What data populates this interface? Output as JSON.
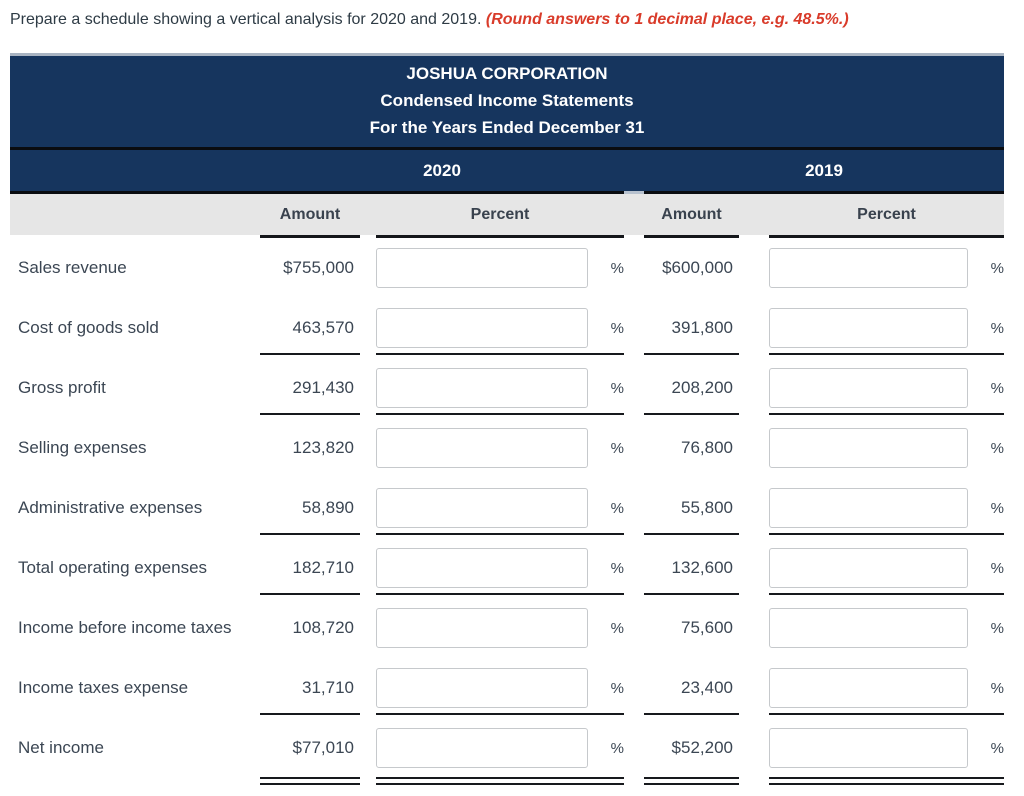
{
  "page": {
    "instruction_main": "Prepare a schedule showing a vertical analysis for 2020 and 2019.",
    "instruction_note": "(Round answers to 1 decimal place, e.g. 48.5%.)"
  },
  "table": {
    "title_line1": "JOSHUA CORPORATION",
    "title_line2": "Condensed Income Statements",
    "title_line3": "For the Years Ended December 31",
    "year_2020_label": "2020",
    "year_2019_label": "2019",
    "amount_header": "Amount",
    "percent_header": "Percent",
    "percent_symbol": "%",
    "rows": [
      {
        "label": "Sales revenue",
        "amount_2020": "$755,000",
        "percent_2020": "",
        "amount_2019": "$600,000",
        "percent_2019": "",
        "underline_after": "none"
      },
      {
        "label": "Cost of goods sold",
        "amount_2020": "463,570",
        "percent_2020": "",
        "amount_2019": "391,800",
        "percent_2019": "",
        "underline_after": "single"
      },
      {
        "label": "Gross profit",
        "amount_2020": "291,430",
        "percent_2020": "",
        "amount_2019": "208,200",
        "percent_2019": "",
        "underline_after": "single"
      },
      {
        "label": "Selling expenses",
        "amount_2020": "123,820",
        "percent_2020": "",
        "amount_2019": "76,800",
        "percent_2019": "",
        "underline_after": "none"
      },
      {
        "label": "Administrative expenses",
        "amount_2020": "58,890",
        "percent_2020": "",
        "amount_2019": "55,800",
        "percent_2019": "",
        "underline_after": "single"
      },
      {
        "label": "Total operating expenses",
        "amount_2020": "182,710",
        "percent_2020": "",
        "amount_2019": "132,600",
        "percent_2019": "",
        "underline_after": "single"
      },
      {
        "label": "Income before income taxes",
        "amount_2020": "108,720",
        "percent_2020": "",
        "amount_2019": "75,600",
        "percent_2019": "",
        "underline_after": "none"
      },
      {
        "label": "Income taxes expense",
        "amount_2020": "31,710",
        "percent_2020": "",
        "amount_2019": "23,400",
        "percent_2019": "",
        "underline_after": "single"
      },
      {
        "label": "Net income",
        "amount_2020": "$77,010",
        "percent_2020": "",
        "amount_2019": "$52,200",
        "percent_2019": "",
        "underline_after": "double"
      }
    ]
  },
  "colors": {
    "header_navy": "#16355e",
    "header_gray": "#e6e6e6",
    "note_red": "#d93b2a",
    "body_text": "#3b4653",
    "rule_black": "#17191d"
  }
}
